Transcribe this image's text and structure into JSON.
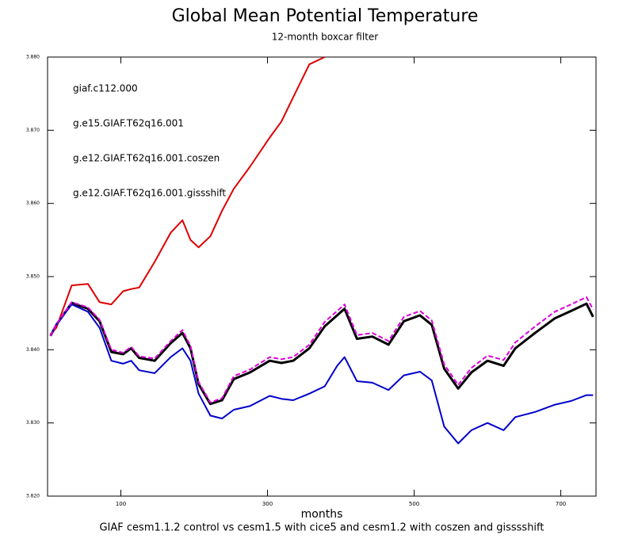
{
  "chart_data": {
    "type": "line",
    "title": "Global Mean Potential Temperature",
    "subtitle": "12-month boxcar filter",
    "x_label": "months",
    "footer": "GIAF cesm1.1.2 control vs cesm1.5 with cice5 and cesm1.2 with coszen and gisssshift",
    "x": [
      4,
      12,
      33,
      55,
      71,
      87,
      103,
      114,
      125,
      146,
      168,
      184,
      195,
      206,
      222,
      238,
      254,
      276,
      303,
      319,
      335,
      357,
      378,
      395,
      405,
      422,
      443,
      465,
      486,
      508,
      524,
      541,
      560,
      578,
      600,
      622,
      638,
      665,
      692,
      714,
      735,
      744
    ],
    "series": [
      {
        "name": "giaf.c112.000",
        "color": "#000000",
        "width": 3,
        "values": [
          3.8419,
          3.8434,
          3.8464,
          3.8456,
          3.8439,
          3.8397,
          3.8394,
          3.8402,
          3.8389,
          3.8385,
          3.8409,
          3.8423,
          3.8402,
          3.8353,
          3.8326,
          3.8331,
          3.836,
          3.8369,
          3.8385,
          3.8382,
          3.8385,
          3.8402,
          3.8432,
          3.8447,
          3.8456,
          3.8415,
          3.8418,
          3.8407,
          3.8439,
          3.8447,
          3.8434,
          3.8374,
          3.8347,
          3.8369,
          3.8385,
          3.8378,
          3.8402,
          3.8423,
          3.8443,
          3.8453,
          3.8463,
          3.8445
        ]
      },
      {
        "name": "g.e15.GIAF.T62q16.001",
        "color": "#dd0000",
        "width": 2,
        "values": [
          3.8421,
          3.843,
          3.8488,
          3.849,
          3.8465,
          3.8462,
          3.848,
          3.8483,
          3.8485,
          3.852,
          3.856,
          3.8577,
          3.855,
          3.854,
          3.8555,
          3.859,
          3.862,
          3.865,
          3.869,
          3.8712,
          3.8745,
          3.879,
          3.88,
          null,
          null,
          null,
          null,
          null,
          null,
          null,
          null,
          null,
          null,
          null,
          null,
          null,
          null,
          null,
          null,
          null,
          null,
          null
        ]
      },
      {
        "name": "g.e12.GIAF.T62q16.001.coszen",
        "color": "#0000cc",
        "width": 2,
        "values": [
          3.8419,
          3.8434,
          3.8462,
          3.8452,
          3.843,
          3.8385,
          3.8381,
          3.8385,
          3.8372,
          3.8368,
          3.839,
          3.8402,
          3.8385,
          3.834,
          3.831,
          3.8306,
          3.8318,
          3.8323,
          3.8337,
          3.8333,
          3.8331,
          3.834,
          3.835,
          3.8378,
          3.839,
          3.8357,
          3.8355,
          3.8345,
          3.8365,
          3.837,
          3.8358,
          3.8295,
          3.8272,
          3.829,
          3.83,
          3.829,
          3.8308,
          3.8315,
          3.8325,
          3.833,
          3.8338,
          3.8338
        ]
      },
      {
        "name": "g.e12.GIAF.T62q16.001.gissshift",
        "color": "#dd00dd",
        "width": 2,
        "dash": true,
        "values": [
          3.8419,
          3.8435,
          3.8465,
          3.8458,
          3.8441,
          3.84,
          3.8396,
          3.8404,
          3.8391,
          3.8388,
          3.8412,
          3.8427,
          3.8405,
          3.8356,
          3.8328,
          3.8334,
          3.8364,
          3.8373,
          3.839,
          3.8387,
          3.839,
          3.8407,
          3.8438,
          3.8453,
          3.8462,
          3.842,
          3.8423,
          3.8412,
          3.8445,
          3.8453,
          3.844,
          3.838,
          3.8352,
          3.8375,
          3.8392,
          3.8386,
          3.841,
          3.8432,
          3.8452,
          3.8462,
          3.8472,
          3.8455
        ]
      }
    ],
    "xlim": [
      0,
      748
    ],
    "xticks": [
      100,
      300,
      500,
      700
    ],
    "ylim": [
      3.82,
      3.88
    ],
    "yticks": [
      {
        "value": 3.82,
        "label": "3.820"
      },
      {
        "value": 3.83,
        "label": "3.830"
      },
      {
        "value": 3.84,
        "label": "3.840"
      },
      {
        "value": 3.85,
        "label": "3.850"
      },
      {
        "value": 3.86,
        "label": "3.860"
      },
      {
        "value": 3.87,
        "label": "3.870"
      },
      {
        "value": 3.88,
        "label": "3.880"
      }
    ]
  }
}
